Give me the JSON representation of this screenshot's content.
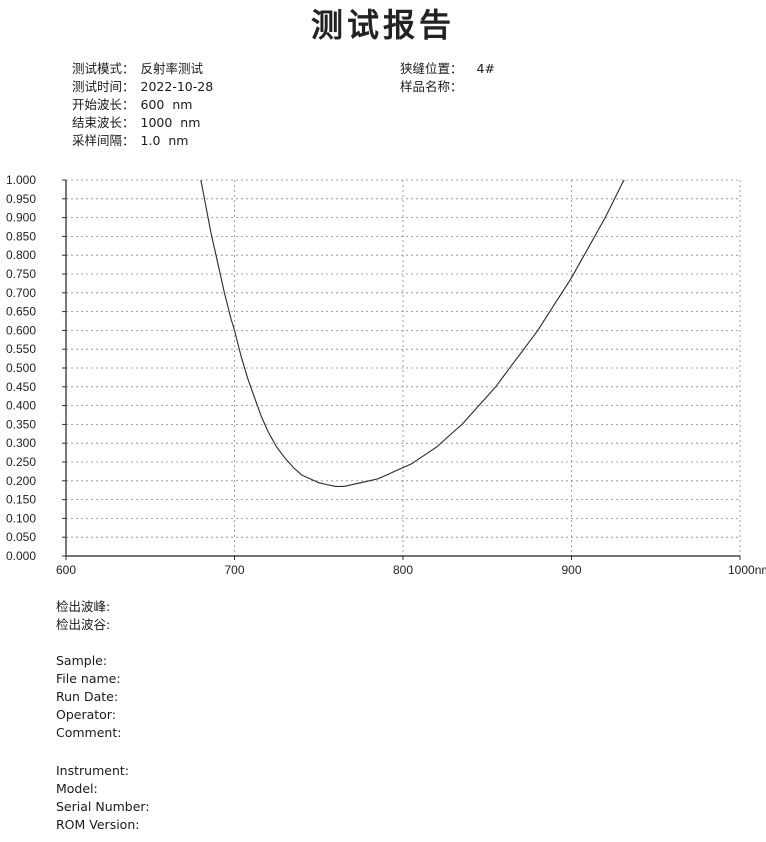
{
  "report": {
    "title": "测试报告",
    "left_fields": [
      {
        "label": "测试模式：",
        "value": "反射率测试"
      },
      {
        "label": "测试时间：",
        "value": "2022-10-28"
      },
      {
        "label": "开始波长：",
        "value": "600  nm"
      },
      {
        "label": "结束波长：",
        "value": "1000  nm"
      },
      {
        "label": "采样间隔：",
        "value": "1.0  nm"
      }
    ],
    "right_fields": [
      {
        "label": "狭缝位置：",
        "value": "4#"
      },
      {
        "label": "样品名称：",
        "value": ""
      }
    ],
    "peak_labels": [
      "检出波峰:",
      "检出波谷:"
    ],
    "info_block1": [
      "Sample:",
      "File name:",
      "Run Date:",
      "Operator:",
      "Comment:"
    ],
    "info_block2": [
      "Instrument:",
      "Model:",
      "Serial Number:",
      "ROM Version:"
    ]
  },
  "chart_data": {
    "type": "line",
    "title": "",
    "xlabel": "",
    "ylabel": "",
    "xlim": [
      600,
      1000
    ],
    "ylim": [
      0,
      1.0
    ],
    "x_ticks": [
      "600",
      "700",
      "800",
      "900",
      "1000nm"
    ],
    "y_ticks": [
      "0.000",
      "0.050",
      "0.100",
      "0.150",
      "0.200",
      "0.250",
      "0.300",
      "0.350",
      "0.400",
      "0.450",
      "0.500",
      "0.550",
      "0.600",
      "0.650",
      "0.700",
      "0.750",
      "0.800",
      "0.850",
      "0.900",
      "0.950",
      "1.000"
    ],
    "grid": true,
    "line_color": "#2a2a2a",
    "series": [
      {
        "x": [
          680,
          683,
          686,
          690,
          694,
          698,
          700,
          704,
          708,
          712,
          716,
          720,
          725,
          730,
          735,
          740,
          745,
          750,
          755,
          760,
          765,
          770,
          775,
          780,
          785,
          790,
          795,
          800,
          805,
          810,
          815,
          820,
          825,
          830,
          835,
          840,
          845,
          850,
          855,
          860,
          865,
          870,
          875,
          880,
          885,
          890,
          895,
          900,
          905,
          910,
          915,
          920,
          925,
          930,
          935
        ],
        "y": [
          1.0,
          0.93,
          0.86,
          0.78,
          0.7,
          0.63,
          0.6,
          0.53,
          0.47,
          0.42,
          0.37,
          0.33,
          0.29,
          0.26,
          0.235,
          0.215,
          0.205,
          0.195,
          0.19,
          0.185,
          0.185,
          0.19,
          0.195,
          0.2,
          0.205,
          0.215,
          0.225,
          0.235,
          0.245,
          0.26,
          0.275,
          0.29,
          0.31,
          0.33,
          0.35,
          0.375,
          0.4,
          0.425,
          0.45,
          0.48,
          0.51,
          0.54,
          0.57,
          0.6,
          0.635,
          0.67,
          0.705,
          0.74,
          0.78,
          0.82,
          0.86,
          0.9,
          0.945,
          0.99,
          1.03
        ]
      }
    ]
  }
}
